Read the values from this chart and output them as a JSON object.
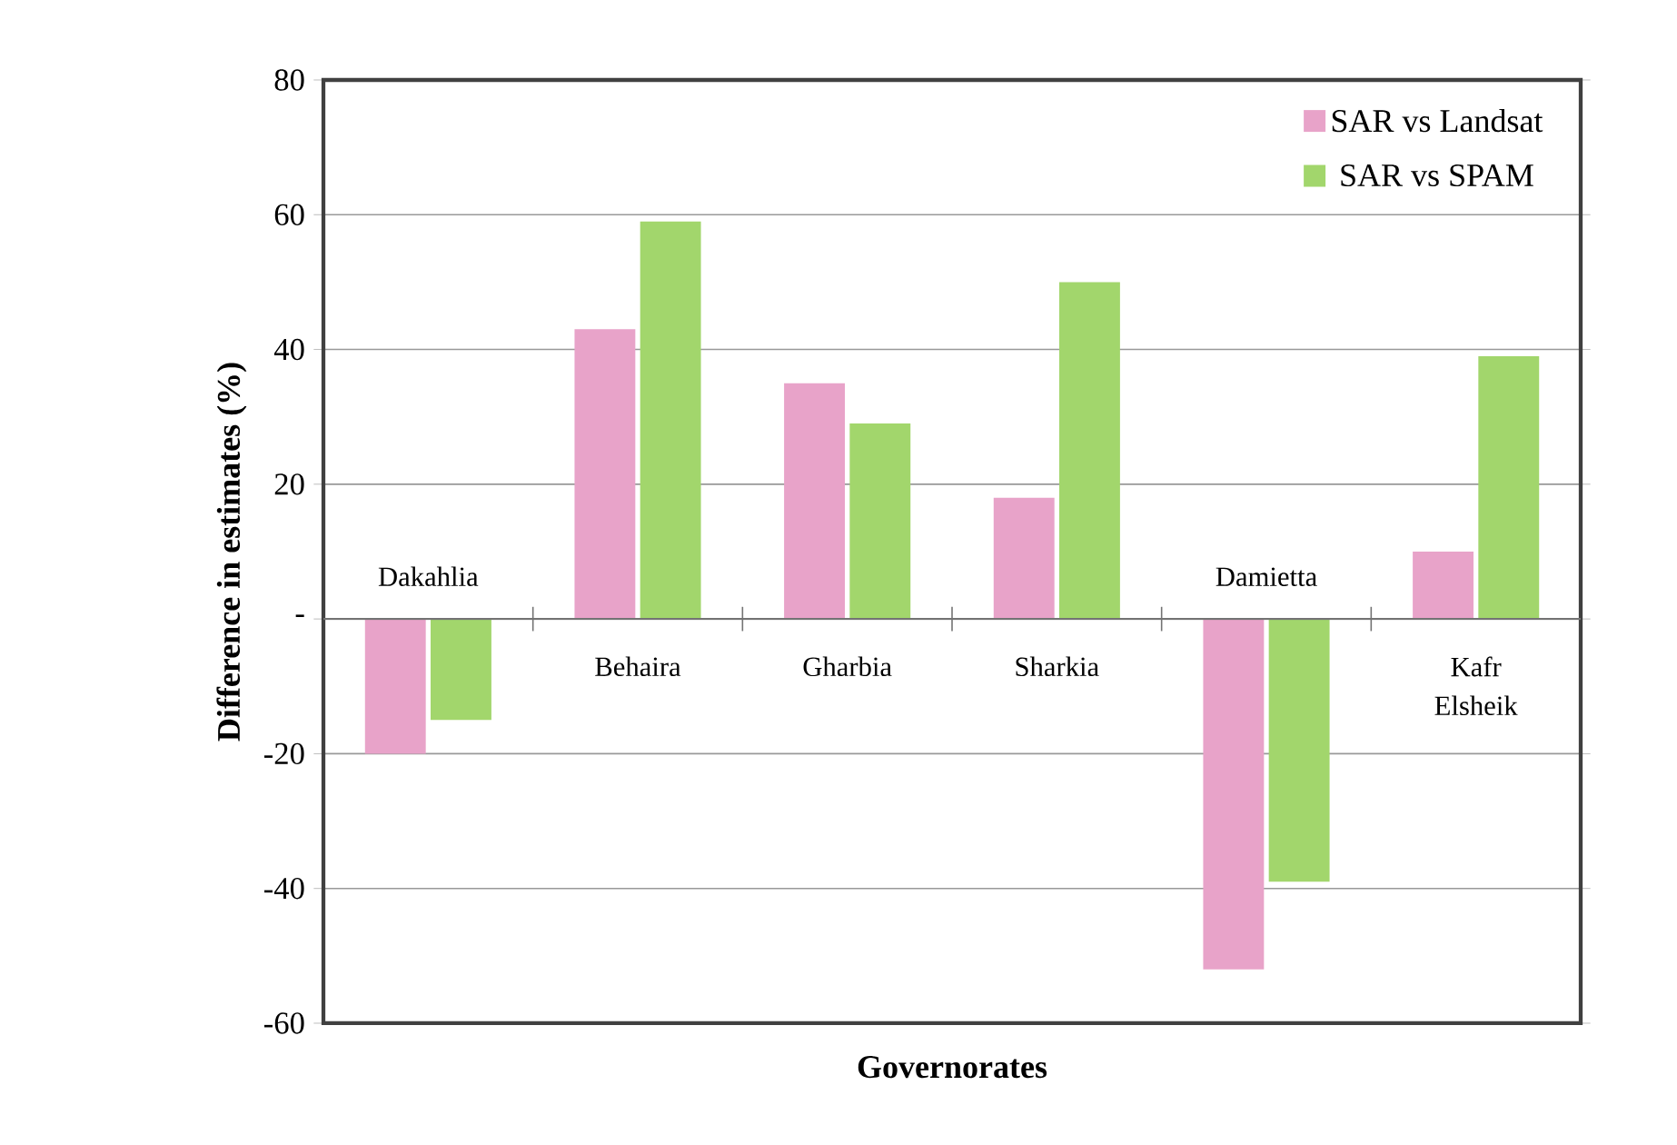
{
  "chart_data": {
    "type": "bar",
    "xlabel": "Governorates",
    "ylabel": "Difference in estimates (%)",
    "categories": [
      "Dakahlia",
      "Behaira",
      "Gharbia",
      "Sharkia",
      "Damietta",
      "Kafr Elsheik"
    ],
    "series": [
      {
        "name": "SAR vs Landsat",
        "color": "#e8a3c9",
        "values": [
          -20,
          43,
          35,
          18,
          -52,
          10
        ]
      },
      {
        "name": "SAR vs SPAM",
        "color": "#a2d66c",
        "values": [
          -15,
          59,
          29,
          50,
          -39,
          39
        ]
      }
    ],
    "ylim": [
      -60,
      80
    ],
    "yticks": [
      -60,
      -40,
      -20,
      {
        "value": 0,
        "label": "-"
      },
      20,
      40,
      60,
      80
    ],
    "grid": "y",
    "legend": "top right"
  }
}
